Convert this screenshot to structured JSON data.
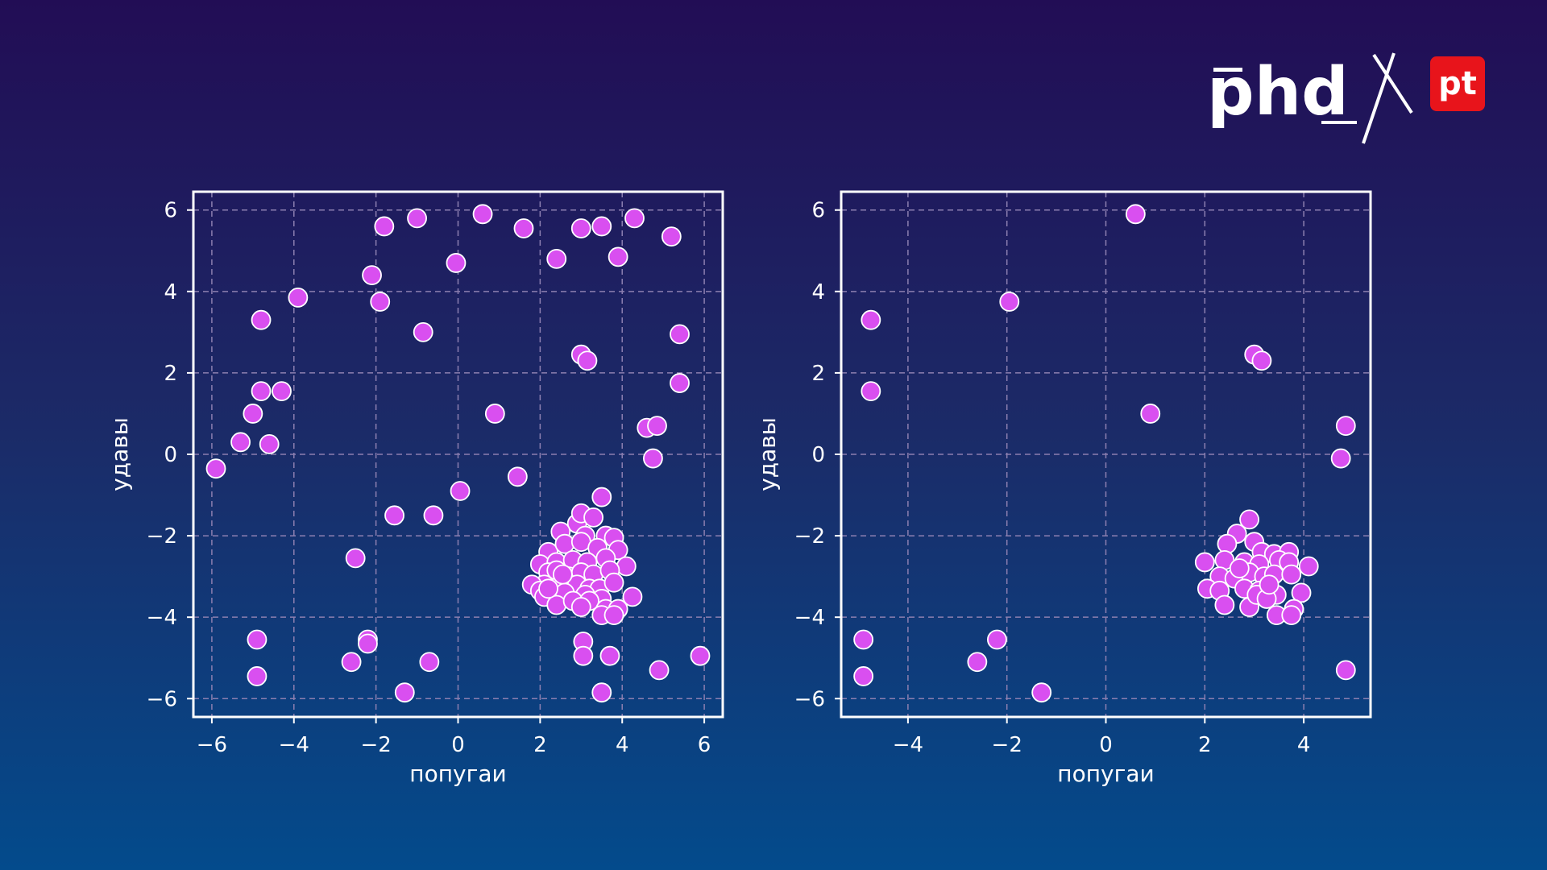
{
  "logo": {
    "brand_text": "phd",
    "badge_text": "pt",
    "badge_color": "#e8141b"
  },
  "colors": {
    "point_fill": "#d94ff0",
    "point_stroke": "#ffffff",
    "grid": "#8c7fb0",
    "frame": "#ffffff"
  },
  "chart_data": [
    {
      "type": "scatter",
      "title": "",
      "xlabel": "попугаи",
      "ylabel": "удавы",
      "xlim": [
        -6.45,
        6.45
      ],
      "ylim": [
        -6.45,
        6.45
      ],
      "xticks": [
        -6,
        -4,
        -2,
        0,
        2,
        4,
        6
      ],
      "yticks": [
        -6,
        -4,
        -2,
        0,
        2,
        4,
        6
      ],
      "xtick_labels": [
        "−6",
        "−4",
        "−2",
        "0",
        "2",
        "4",
        "6"
      ],
      "ytick_labels": [
        "−6",
        "−4",
        "−2",
        "0",
        "2",
        "4",
        "6"
      ],
      "grid": true,
      "points": [
        [
          0.6,
          5.9
        ],
        [
          -1.0,
          5.8
        ],
        [
          -1.8,
          5.6
        ],
        [
          1.6,
          5.55
        ],
        [
          3.0,
          5.55
        ],
        [
          3.5,
          5.6
        ],
        [
          4.3,
          5.8
        ],
        [
          5.2,
          5.35
        ],
        [
          -2.1,
          4.4
        ],
        [
          -0.05,
          4.7
        ],
        [
          2.4,
          4.8
        ],
        [
          3.9,
          4.85
        ],
        [
          -3.9,
          3.85
        ],
        [
          -1.9,
          3.75
        ],
        [
          -4.8,
          3.3
        ],
        [
          -0.85,
          3.0
        ],
        [
          5.4,
          2.95
        ],
        [
          3.0,
          2.45
        ],
        [
          3.15,
          2.3
        ],
        [
          5.4,
          1.75
        ],
        [
          -4.8,
          1.55
        ],
        [
          -4.3,
          1.55
        ],
        [
          -5.0,
          1.0
        ],
        [
          0.9,
          1.0
        ],
        [
          4.6,
          0.65
        ],
        [
          4.85,
          0.7
        ],
        [
          -5.3,
          0.3
        ],
        [
          -4.6,
          0.25
        ],
        [
          4.75,
          -0.1
        ],
        [
          -5.9,
          -0.35
        ],
        [
          1.45,
          -0.55
        ],
        [
          0.05,
          -0.9
        ],
        [
          3.5,
          -1.05
        ],
        [
          -1.55,
          -1.5
        ],
        [
          -0.6,
          -1.5
        ],
        [
          -2.5,
          -2.55
        ],
        [
          -4.9,
          -4.55
        ],
        [
          -2.2,
          -4.55
        ],
        [
          -2.2,
          -4.65
        ],
        [
          -4.9,
          -5.45
        ],
        [
          -2.6,
          -5.1
        ],
        [
          -0.7,
          -5.1
        ],
        [
          -1.3,
          -5.85
        ],
        [
          3.05,
          -4.6
        ],
        [
          3.05,
          -4.95
        ],
        [
          3.7,
          -4.95
        ],
        [
          4.9,
          -5.3
        ],
        [
          5.9,
          -4.95
        ],
        [
          3.5,
          -5.85
        ],
        [
          2.9,
          -1.7
        ],
        [
          3.0,
          -1.45
        ],
        [
          3.3,
          -1.55
        ],
        [
          2.5,
          -1.9
        ],
        [
          3.1,
          -2.0
        ],
        [
          3.6,
          -2.0
        ],
        [
          3.8,
          -2.05
        ],
        [
          2.2,
          -2.4
        ],
        [
          2.6,
          -2.2
        ],
        [
          3.0,
          -2.15
        ],
        [
          3.4,
          -2.3
        ],
        [
          3.9,
          -2.35
        ],
        [
          2.0,
          -2.7
        ],
        [
          2.4,
          -2.65
        ],
        [
          2.8,
          -2.6
        ],
        [
          3.15,
          -2.65
        ],
        [
          3.6,
          -2.55
        ],
        [
          4.1,
          -2.75
        ],
        [
          2.2,
          -2.9
        ],
        [
          2.4,
          -2.85
        ],
        [
          2.7,
          -3.0
        ],
        [
          3.0,
          -2.9
        ],
        [
          3.3,
          -2.95
        ],
        [
          3.7,
          -2.85
        ],
        [
          2.1,
          -3.2
        ],
        [
          2.5,
          -3.2
        ],
        [
          2.9,
          -3.2
        ],
        [
          3.2,
          -3.3
        ],
        [
          3.45,
          -3.3
        ],
        [
          3.8,
          -3.15
        ],
        [
          1.8,
          -3.2
        ],
        [
          2.0,
          -3.35
        ],
        [
          2.6,
          -3.4
        ],
        [
          3.1,
          -3.45
        ],
        [
          3.5,
          -3.55
        ],
        [
          4.25,
          -3.5
        ],
        [
          2.1,
          -3.5
        ],
        [
          2.4,
          -3.7
        ],
        [
          2.8,
          -3.6
        ],
        [
          3.2,
          -3.6
        ],
        [
          3.6,
          -3.8
        ],
        [
          3.9,
          -3.8
        ],
        [
          3.5,
          -3.95
        ],
        [
          3.8,
          -3.95
        ],
        [
          2.2,
          -3.3
        ],
        [
          3.0,
          -3.75
        ],
        [
          2.55,
          -2.95
        ]
      ]
    },
    {
      "type": "scatter",
      "title": "",
      "xlabel": "попугаи",
      "ylabel": "удавы",
      "xlim": [
        -5.35,
        5.35
      ],
      "ylim": [
        -6.45,
        6.45
      ],
      "xticks": [
        -4,
        -2,
        0,
        2,
        4
      ],
      "yticks": [
        -6,
        -4,
        -2,
        0,
        2,
        4,
        6
      ],
      "xtick_labels": [
        "−4",
        "−2",
        "0",
        "2",
        "4"
      ],
      "ytick_labels": [
        "−6",
        "−4",
        "−2",
        "0",
        "2",
        "4",
        "6"
      ],
      "grid": true,
      "points": [
        [
          0.6,
          5.9
        ],
        [
          -1.95,
          3.75
        ],
        [
          -4.75,
          3.3
        ],
        [
          -4.75,
          1.55
        ],
        [
          0.9,
          1.0
        ],
        [
          3.0,
          2.45
        ],
        [
          3.15,
          2.3
        ],
        [
          4.85,
          0.7
        ],
        [
          4.75,
          -0.1
        ],
        [
          -4.9,
          -4.55
        ],
        [
          -4.9,
          -5.45
        ],
        [
          -2.6,
          -5.1
        ],
        [
          -2.2,
          -4.55
        ],
        [
          -1.3,
          -5.85
        ],
        [
          4.85,
          -5.3
        ],
        [
          2.9,
          -1.6
        ],
        [
          2.65,
          -1.95
        ],
        [
          2.45,
          -2.2
        ],
        [
          3.0,
          -2.15
        ],
        [
          3.15,
          -2.4
        ],
        [
          3.4,
          -2.45
        ],
        [
          3.7,
          -2.4
        ],
        [
          2.0,
          -2.65
        ],
        [
          2.4,
          -2.6
        ],
        [
          2.8,
          -2.65
        ],
        [
          3.1,
          -2.7
        ],
        [
          3.5,
          -2.6
        ],
        [
          3.7,
          -2.65
        ],
        [
          4.1,
          -2.75
        ],
        [
          2.3,
          -3.0
        ],
        [
          2.6,
          -3.05
        ],
        [
          2.9,
          -2.9
        ],
        [
          3.2,
          -3.0
        ],
        [
          3.4,
          -2.95
        ],
        [
          3.75,
          -2.95
        ],
        [
          2.05,
          -3.3
        ],
        [
          2.3,
          -3.35
        ],
        [
          2.8,
          -3.3
        ],
        [
          3.1,
          -3.35
        ],
        [
          3.45,
          -3.45
        ],
        [
          3.95,
          -3.4
        ],
        [
          2.4,
          -3.7
        ],
        [
          2.9,
          -3.75
        ],
        [
          3.05,
          -3.45
        ],
        [
          3.25,
          -3.55
        ],
        [
          3.8,
          -3.8
        ],
        [
          3.45,
          -3.95
        ],
        [
          3.75,
          -3.95
        ],
        [
          2.7,
          -2.8
        ],
        [
          3.3,
          -3.2
        ]
      ]
    }
  ]
}
